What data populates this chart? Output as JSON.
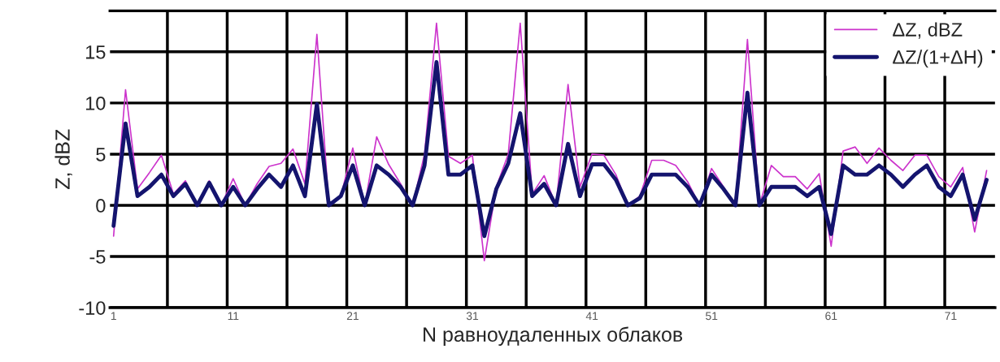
{
  "chart_data": {
    "type": "line",
    "xlabel": "N равноудаленных облаков",
    "ylabel": "Z, dBZ",
    "x": [
      1,
      2,
      3,
      4,
      5,
      6,
      7,
      8,
      9,
      10,
      11,
      12,
      13,
      14,
      15,
      16,
      17,
      18,
      19,
      20,
      21,
      22,
      23,
      24,
      25,
      26,
      27,
      28,
      29,
      30,
      31,
      32,
      33,
      34,
      35,
      36,
      37,
      38,
      39,
      40,
      41,
      42,
      43,
      44,
      45,
      46,
      47,
      48,
      49,
      50,
      51,
      52,
      53,
      54,
      55,
      56,
      57,
      58,
      59,
      60,
      61,
      62,
      63,
      64,
      65,
      66,
      67,
      68,
      69,
      70,
      71,
      72,
      73,
      74
    ],
    "series": [
      {
        "name": "ΔZ, dBZ",
        "color": "#cc33cc",
        "values": [
          -3,
          11.3,
          1.6,
          3.2,
          4.9,
          1.1,
          2.4,
          0,
          2.4,
          0,
          2.6,
          0,
          2.1,
          3.8,
          4.1,
          5.5,
          2.1,
          16.7,
          0,
          0.9,
          5.6,
          0,
          6.7,
          4,
          2.1,
          0,
          5,
          17.8,
          4.8,
          4.1,
          4.9,
          -5.4,
          1.8,
          5,
          17.8,
          1.1,
          2.9,
          0,
          11.8,
          1.8,
          5,
          4.9,
          3,
          0,
          0.9,
          4.4,
          4.4,
          3.9,
          2.3,
          0,
          3.6,
          1.8,
          0,
          16.2,
          0,
          3.9,
          2.8,
          2.8,
          1.6,
          3.1,
          -4,
          5.3,
          5.7,
          4.1,
          5.6,
          4.4,
          3.4,
          4.9,
          4.9,
          2.8,
          1.8,
          3.7,
          -2.6,
          3.4
        ]
      },
      {
        "name": "ΔZ/(1+ΔH)",
        "color": "#14146e",
        "values": [
          -2,
          8,
          0.9,
          1.8,
          3,
          0.9,
          2.1,
          0,
          2.2,
          0,
          1.8,
          0,
          1.6,
          3,
          1.8,
          3.9,
          0.9,
          9.9,
          0,
          0.9,
          3.9,
          0,
          3.9,
          3,
          1.8,
          0,
          3.9,
          14,
          3,
          3,
          3.9,
          -3,
          1.6,
          4.1,
          9,
          0.9,
          2.1,
          0,
          6,
          0.9,
          4,
          4,
          2.5,
          0,
          0.7,
          3,
          3,
          3,
          1.8,
          0,
          3,
          1.6,
          0,
          11,
          0,
          1.8,
          1.8,
          1.8,
          0.9,
          1.8,
          -2.8,
          3.9,
          3,
          3,
          3.9,
          3,
          1.8,
          3,
          3.9,
          1.8,
          0.9,
          3,
          -1.4,
          2.5
        ]
      }
    ],
    "xlim": [
      0.7,
      74.7
    ],
    "xticks": [
      1,
      {
        "value": 5.5,
        "label": null
      },
      {
        "value": 10.5,
        "label": null
      },
      11,
      {
        "value": 15.5,
        "label": null
      },
      {
        "value": 20.5,
        "label": null
      },
      21,
      {
        "value": 25.5,
        "label": null
      },
      {
        "value": 30.5,
        "label": null
      },
      31,
      {
        "value": 35.5,
        "label": null
      },
      {
        "value": 40.5,
        "label": null
      },
      41,
      {
        "value": 45.5,
        "label": null
      },
      {
        "value": 50.5,
        "label": null
      },
      51,
      {
        "value": 55.5,
        "label": null
      },
      {
        "value": 60.5,
        "label": null
      },
      61,
      {
        "value": 65.5,
        "label": null
      },
      {
        "value": 70.5,
        "label": null
      },
      71
    ],
    "ylim": [
      -10,
      19
    ],
    "yticks": [
      -10,
      -5,
      0,
      5,
      10,
      15
    ],
    "grid": true,
    "legend": "top right"
  }
}
